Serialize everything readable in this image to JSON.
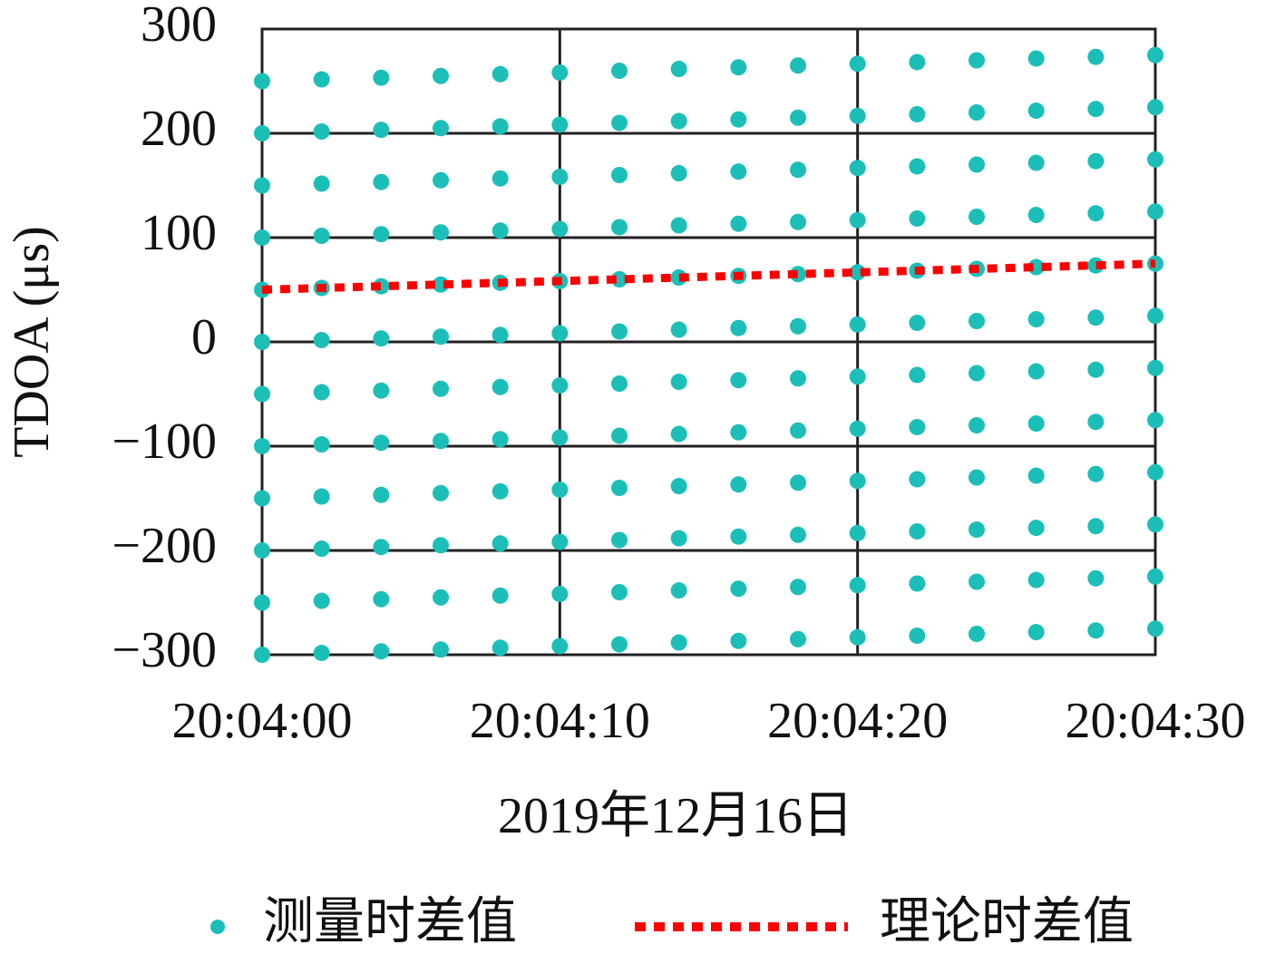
{
  "chart_data": {
    "type": "scatter",
    "xlabel": "2019年12月16日",
    "ylabel": "TDOA (μs)",
    "xlim": [
      0,
      30
    ],
    "xticks": [
      {
        "value": 0,
        "label": "20:04:00"
      },
      {
        "value": 10,
        "label": "20:04:10"
      },
      {
        "value": 20,
        "label": "20:04:20"
      },
      {
        "value": 30,
        "label": "20:04:30"
      }
    ],
    "ylim": [
      -300,
      300
    ],
    "yticks": [
      {
        "value": -300,
        "label": "−300"
      },
      {
        "value": -200,
        "label": "−200"
      },
      {
        "value": -100,
        "label": "−100"
      },
      0,
      100,
      200,
      300
    ],
    "grid": true,
    "legend": "bottom",
    "series": [
      {
        "name": "测量时差值",
        "type": "scatter",
        "color": "#1bbfb8",
        "x": [
          0,
          2,
          4,
          6,
          8,
          10,
          12,
          14,
          16,
          18,
          20,
          22,
          24,
          26,
          28,
          30,
          0,
          2,
          4,
          6,
          8,
          10,
          12,
          14,
          16,
          18,
          20,
          22,
          24,
          26,
          28,
          30,
          0,
          2,
          4,
          6,
          8,
          10,
          12,
          14,
          16,
          18,
          20,
          22,
          24,
          26,
          28,
          30,
          0,
          2,
          4,
          6,
          8,
          10,
          12,
          14,
          16,
          18,
          20,
          22,
          24,
          26,
          28,
          30,
          0,
          2,
          4,
          6,
          8,
          10,
          12,
          14,
          16,
          18,
          20,
          22,
          24,
          26,
          28,
          30,
          0,
          2,
          4,
          6,
          8,
          10,
          12,
          14,
          16,
          18,
          20,
          22,
          24,
          26,
          28,
          30,
          0,
          2,
          4,
          6,
          8,
          10,
          12,
          14,
          16,
          18,
          20,
          22,
          24,
          26,
          28,
          30,
          0,
          2,
          4,
          6,
          8,
          10,
          12,
          14,
          16,
          18,
          20,
          22,
          24,
          26,
          28,
          30,
          0,
          2,
          4,
          6,
          8,
          10,
          12,
          14,
          16,
          18,
          20,
          22,
          24,
          26,
          28,
          30,
          0,
          2,
          4,
          6,
          8,
          10,
          12,
          14,
          16,
          18,
          20,
          22,
          24,
          26,
          28,
          30,
          0,
          2,
          4,
          6,
          8,
          10,
          12,
          14,
          16,
          18,
          20,
          22,
          24,
          26,
          28,
          30,
          0,
          2,
          4,
          6,
          8,
          10,
          12,
          14,
          16,
          18,
          20,
          22,
          24,
          26,
          28,
          30
        ],
        "values": [
          -300,
          -298.3,
          -296.7,
          -295,
          -293.3,
          -291.7,
          -290,
          -288.3,
          -286.7,
          -285,
          -283.3,
          -281.7,
          -280,
          -278.3,
          -276.7,
          -275,
          -250,
          -248.3,
          -246.7,
          -245,
          -243.3,
          -241.7,
          -240,
          -238.3,
          -236.7,
          -235,
          -233.3,
          -231.7,
          -230,
          -228.3,
          -226.7,
          -225,
          -200,
          -198.3,
          -196.7,
          -195,
          -193.3,
          -191.7,
          -190,
          -188.3,
          -186.7,
          -185,
          -183.3,
          -181.7,
          -180,
          -178.3,
          -176.7,
          -175,
          -150,
          -148.3,
          -146.7,
          -145,
          -143.3,
          -141.7,
          -140,
          -138.3,
          -136.7,
          -135,
          -133.3,
          -131.7,
          -130,
          -128.3,
          -126.7,
          -125,
          -100,
          -98.3,
          -96.7,
          -95,
          -93.3,
          -91.7,
          -90,
          -88.3,
          -86.7,
          -85,
          -83.3,
          -81.7,
          -80,
          -78.3,
          -76.7,
          -75,
          -50,
          -48.3,
          -46.7,
          -45,
          -43.3,
          -41.7,
          -40,
          -38.3,
          -36.7,
          -35,
          -33.3,
          -31.7,
          -30,
          -28.3,
          -26.7,
          -25,
          0,
          1.7,
          3.3,
          5,
          6.7,
          8.3,
          10,
          11.7,
          13.3,
          15,
          16.7,
          18.3,
          20,
          21.7,
          23.3,
          25,
          50,
          51.7,
          53.3,
          55,
          56.7,
          58.3,
          60,
          61.7,
          63.3,
          65,
          66.7,
          68.3,
          70,
          71.7,
          73.3,
          75,
          100,
          101.7,
          103.3,
          105,
          106.7,
          108.3,
          110,
          111.7,
          113.3,
          115,
          116.7,
          118.3,
          120,
          121.7,
          123.3,
          125,
          150,
          151.7,
          153.3,
          155,
          156.7,
          158.3,
          160,
          161.7,
          163.3,
          165,
          166.7,
          168.3,
          170,
          171.7,
          173.3,
          175,
          200,
          201.7,
          203.3,
          205,
          206.7,
          208.3,
          210,
          211.7,
          213.3,
          215,
          216.7,
          218.3,
          220,
          221.7,
          223.3,
          225,
          250,
          251.7,
          253.3,
          255,
          256.7,
          258.3,
          260,
          261.7,
          263.3,
          265,
          266.7,
          268.3,
          270,
          271.7,
          273.3,
          275
        ]
      },
      {
        "name": "理论时差值",
        "type": "line",
        "color": "#ff0000",
        "x": [
          0,
          30
        ],
        "values": [
          50,
          75
        ]
      }
    ]
  }
}
